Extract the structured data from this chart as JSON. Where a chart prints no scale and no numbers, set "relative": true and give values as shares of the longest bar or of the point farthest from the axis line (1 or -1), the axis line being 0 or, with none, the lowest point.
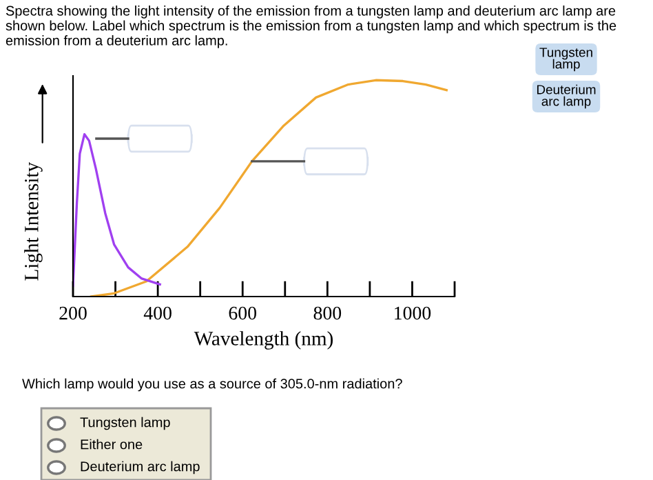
{
  "chart_data": {
    "type": "line",
    "relative": true,
    "title": "Spectra showing the light intensity of the emission from a tungsten lamp and deuterium arc lamp are shown below. Label which spectrum is the emission from a tungsten lamp and which spectrum is the emission from a deuterium arc lamp.",
    "xlabel": "Wavelength (nm)",
    "ylabel": "Light Intensity",
    "xlim": [
      200,
      1100
    ],
    "xticks": [
      200,
      {
        "value": 300,
        "label": null
      },
      400,
      {
        "value": 500,
        "label": null
      },
      600,
      {
        "value": 700,
        "label": null
      },
      800,
      {
        "value": 900,
        "label": null
      },
      1000,
      {
        "value": 1100,
        "label": null
      }
    ],
    "tick_labels": "x",
    "grid": false,
    "legend": false,
    "marker": "none",
    "line_style": "solid",
    "series": [
      {
        "color": "#f0a830",
        "x": [
          243,
          297,
          373,
          470,
          546,
          622,
          697,
          773,
          849,
          914,
          978,
          1032,
          1081
        ],
        "values": [
          0,
          0.015,
          0.07,
          0.23,
          0.41,
          0.625,
          0.79,
          0.92,
          0.98,
          1.0,
          0.996,
          0.98,
          0.954
        ]
      },
      {
        "color": "#a040f0",
        "x": [
          200,
          209,
          216,
          227,
          238,
          254,
          276,
          297,
          330,
          362,
          405
        ],
        "values": [
          0.05,
          0.43,
          0.66,
          0.75,
          0.72,
          0.59,
          0.385,
          0.24,
          0.135,
          0.083,
          0.056
        ]
      }
    ],
    "annotations": [
      "Tungsten lamp",
      "Deuterium arc lamp",
      "Which lamp would you use as a source of 305.0-nm radiation?",
      "Tungsten lamp",
      "Either one",
      "Deuterium arc lamp"
    ]
  }
}
